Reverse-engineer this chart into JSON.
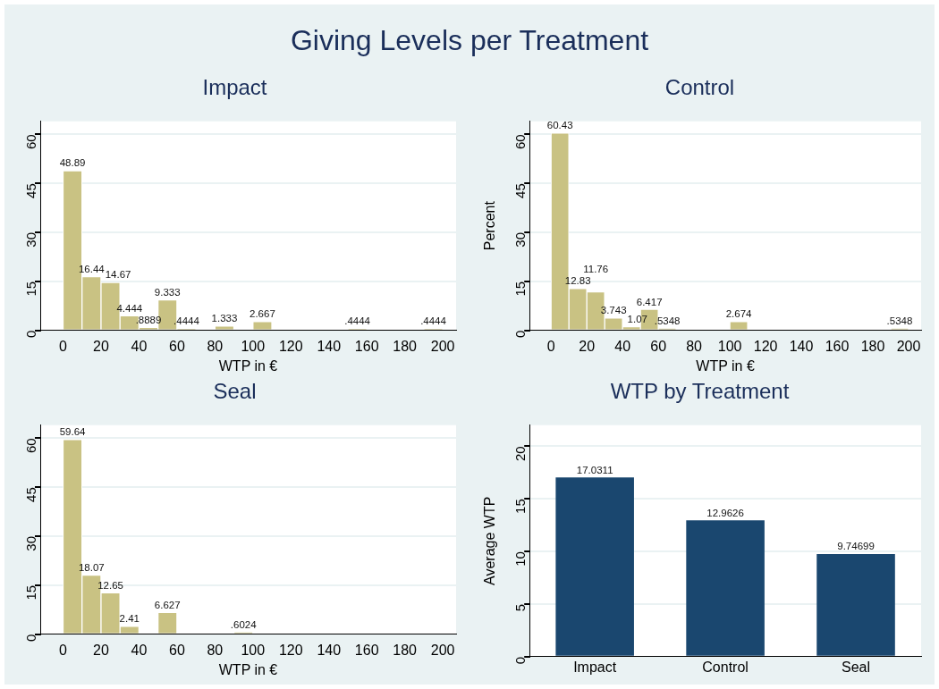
{
  "chart_data": [
    {
      "type": "histogram",
      "title": "Impact",
      "xlabel": "WTP in €",
      "annotations": [
        "Giving Levels per Treatment"
      ],
      "bins": [
        0,
        10,
        20,
        30,
        40,
        50,
        60,
        70,
        80,
        90,
        100,
        110,
        120,
        130,
        140,
        150,
        160,
        170,
        180,
        190,
        200
      ],
      "values": [
        48.89,
        16.44,
        14.67,
        4.444,
        0.8889,
        9.333,
        0.4444,
        0,
        1.333,
        0,
        2.667,
        0,
        0,
        0,
        0,
        0.4444,
        0,
        0,
        0,
        0.4444
      ],
      "value_labels": [
        "48.89",
        "16.44",
        "14.67",
        "4.444",
        ".8889",
        "9.333",
        ".4444",
        null,
        "1.333",
        null,
        "2.667",
        null,
        null,
        null,
        null,
        ".4444",
        null,
        null,
        null,
        ".4444"
      ],
      "color": "#c9c283",
      "xlim": [
        -12,
        207
      ],
      "xticks": [
        0,
        20,
        40,
        60,
        80,
        100,
        120,
        140,
        160,
        180,
        200
      ],
      "ylim": [
        0,
        64
      ],
      "yticks": [
        0,
        15,
        30,
        45,
        60
      ],
      "grid": "y",
      "legend": false
    },
    {
      "type": "histogram",
      "title": "Control",
      "xlabel": "WTP in €",
      "ylabel": "Percent",
      "bins": [
        0,
        10,
        20,
        30,
        40,
        50,
        60,
        70,
        80,
        90,
        100,
        110,
        120,
        130,
        140,
        150,
        160,
        170,
        180,
        190,
        200
      ],
      "values": [
        60.43,
        12.83,
        11.76,
        3.743,
        1.07,
        6.417,
        0.5348,
        0,
        0,
        0,
        2.674,
        0,
        0,
        0,
        0,
        0,
        0,
        0,
        0,
        0.5348
      ],
      "value_labels": [
        "60.43",
        "12.83",
        "11.76",
        "3.743",
        "1.07",
        "6.417",
        ".5348",
        null,
        null,
        null,
        "2.674",
        null,
        null,
        null,
        null,
        null,
        null,
        null,
        null,
        ".5348"
      ],
      "color": "#c9c283",
      "xlim": [
        -12,
        207
      ],
      "xticks": [
        0,
        20,
        40,
        60,
        80,
        100,
        120,
        140,
        160,
        180,
        200
      ],
      "ylim": [
        0,
        64
      ],
      "yticks": [
        0,
        15,
        30,
        45,
        60
      ],
      "grid": "y",
      "legend": false
    },
    {
      "type": "histogram",
      "title": "Seal",
      "xlabel": "WTP in €",
      "bins": [
        0,
        10,
        20,
        30,
        40,
        50,
        60,
        70,
        80,
        90,
        100,
        110,
        120,
        130,
        140,
        150,
        160,
        170,
        180,
        190,
        200
      ],
      "values": [
        59.64,
        18.07,
        12.65,
        2.41,
        0,
        6.627,
        0,
        0,
        0,
        0.6024,
        0,
        0,
        0,
        0,
        0,
        0,
        0,
        0,
        0,
        0
      ],
      "value_labels": [
        "59.64",
        "18.07",
        "12.65",
        "2.41",
        null,
        "6.627",
        null,
        null,
        null,
        ".6024",
        null,
        null,
        null,
        null,
        null,
        null,
        null,
        null,
        null,
        null
      ],
      "color": "#c9c283",
      "xlim": [
        -12,
        207
      ],
      "xticks": [
        0,
        20,
        40,
        60,
        80,
        100,
        120,
        140,
        160,
        180,
        200
      ],
      "ylim": [
        0,
        64
      ],
      "yticks": [
        0,
        15,
        30,
        45,
        60
      ],
      "grid": "y",
      "legend": false
    },
    {
      "type": "bar",
      "title": "WTP by Treatment",
      "ylabel": "Average WTP",
      "categories": [
        "Impact",
        "Control",
        "Seal"
      ],
      "values": [
        17.0311,
        12.9626,
        9.74699
      ],
      "color": "#1a476f",
      "data_labels": true,
      "ylim": [
        0,
        22
      ],
      "yticks": [
        0,
        5,
        10,
        15,
        20
      ],
      "grid": "y",
      "legend": false
    }
  ]
}
